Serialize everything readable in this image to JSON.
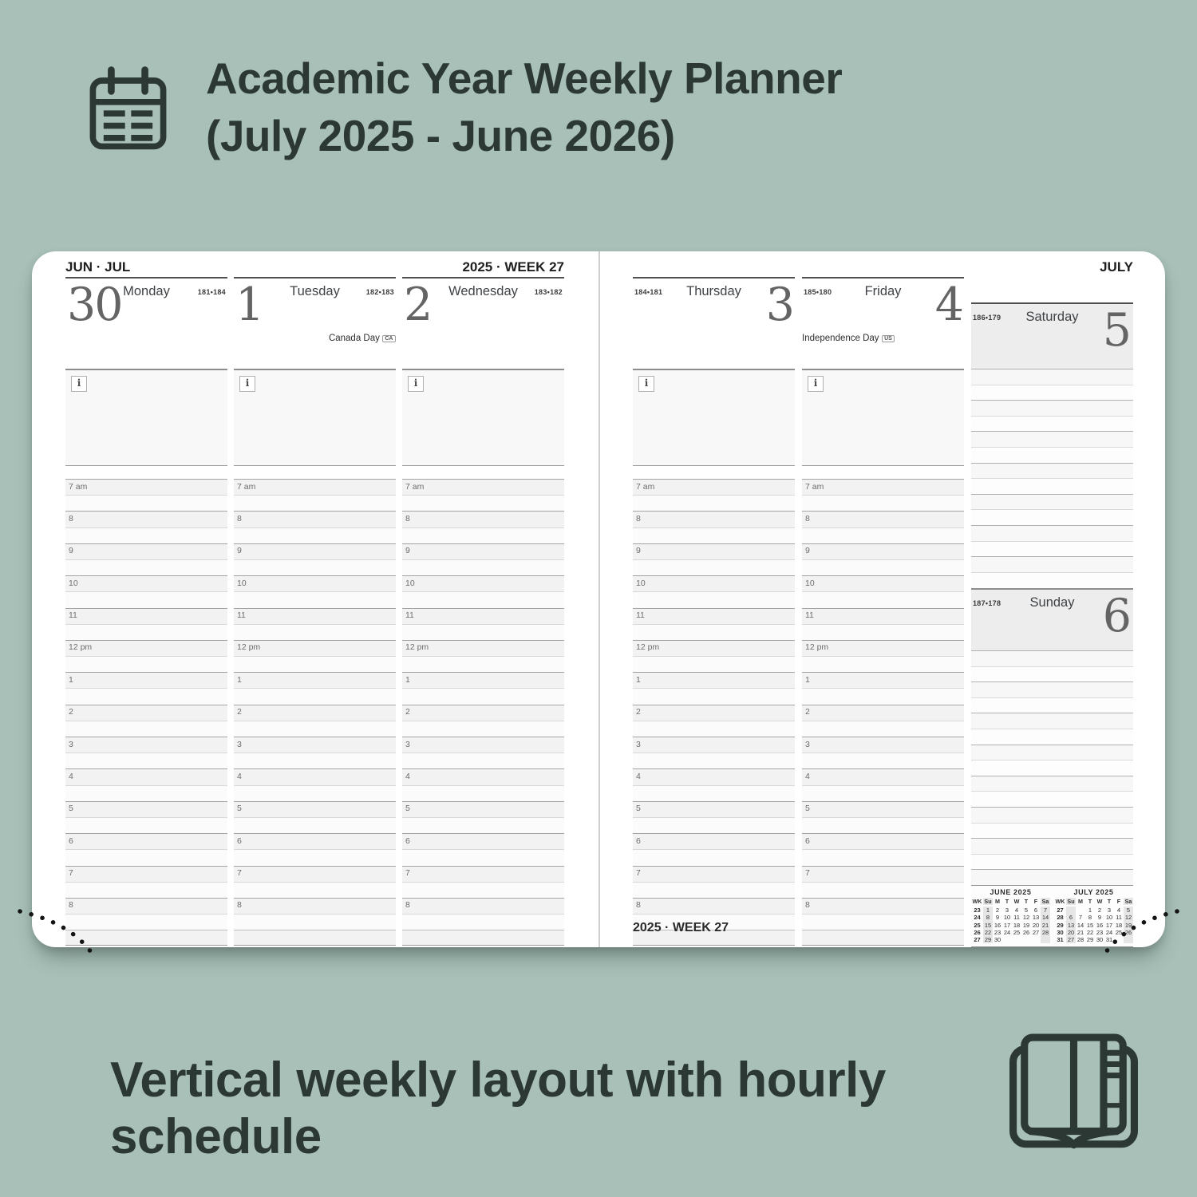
{
  "page": {
    "background": "#a8c0b8",
    "text_color": "#2c3834"
  },
  "header": {
    "icon": "calendar-icon",
    "title_line1": "Academic Year Weekly Planner",
    "title_line2": "(July 2025 - June 2026)"
  },
  "planner": {
    "left_page_month_label": "JUN · JUL",
    "left_page_week_label": "2025 · WEEK 27",
    "right_page_month_label": "JULY",
    "bottom_week_label": "2025 · WEEK 27",
    "note_icon": "i",
    "time_labels": [
      "7 am",
      "8",
      "9",
      "10",
      "11",
      "12 pm",
      "1",
      "2",
      "3",
      "4",
      "5",
      "6",
      "7",
      "8"
    ],
    "days_left": [
      {
        "name": "Monday",
        "number": "30",
        "day_of_year": "181•184"
      },
      {
        "name": "Tuesday",
        "number": "1",
        "day_of_year": "182•183",
        "holiday": "Canada Day",
        "holiday_badge": "CA"
      },
      {
        "name": "Wednesday",
        "number": "2",
        "day_of_year": "183•182"
      }
    ],
    "days_right": [
      {
        "name": "Thursday",
        "number": "3",
        "day_of_year": "184•181"
      },
      {
        "name": "Friday",
        "number": "4",
        "day_of_year": "185•180",
        "holiday": "Independence Day",
        "holiday_badge": "US"
      }
    ],
    "weekend": {
      "saturday": {
        "name": "Saturday",
        "number": "5",
        "day_of_year": "186•179"
      },
      "sunday": {
        "name": "Sunday",
        "number": "6",
        "day_of_year": "187•178"
      }
    },
    "mini_calendars": [
      {
        "title": "JUNE 2025",
        "header": [
          "WK",
          "Su",
          "M",
          "T",
          "W",
          "T",
          "F",
          "Sa"
        ],
        "rows": [
          [
            "23",
            "1",
            "2",
            "3",
            "4",
            "5",
            "6",
            "7"
          ],
          [
            "24",
            "8",
            "9",
            "10",
            "11",
            "12",
            "13",
            "14"
          ],
          [
            "25",
            "15",
            "16",
            "17",
            "18",
            "19",
            "20",
            "21"
          ],
          [
            "26",
            "22",
            "23",
            "24",
            "25",
            "26",
            "27",
            "28"
          ],
          [
            "27",
            "29",
            "30",
            "",
            "",
            "",
            "",
            ""
          ]
        ]
      },
      {
        "title": "JULY 2025",
        "header": [
          "WK",
          "Su",
          "M",
          "T",
          "W",
          "T",
          "F",
          "Sa"
        ],
        "rows": [
          [
            "27",
            "",
            "",
            "1",
            "2",
            "3",
            "4",
            "5"
          ],
          [
            "28",
            "6",
            "7",
            "8",
            "9",
            "10",
            "11",
            "12"
          ],
          [
            "29",
            "13",
            "14",
            "15",
            "16",
            "17",
            "18",
            "19"
          ],
          [
            "30",
            "20",
            "21",
            "22",
            "23",
            "24",
            "25",
            "26"
          ],
          [
            "31",
            "27",
            "28",
            "29",
            "30",
            "31",
            "",
            ""
          ]
        ]
      }
    ]
  },
  "caption": {
    "text": "Vertical weekly layout with hourly schedule",
    "icon": "open-notebook-icon"
  }
}
